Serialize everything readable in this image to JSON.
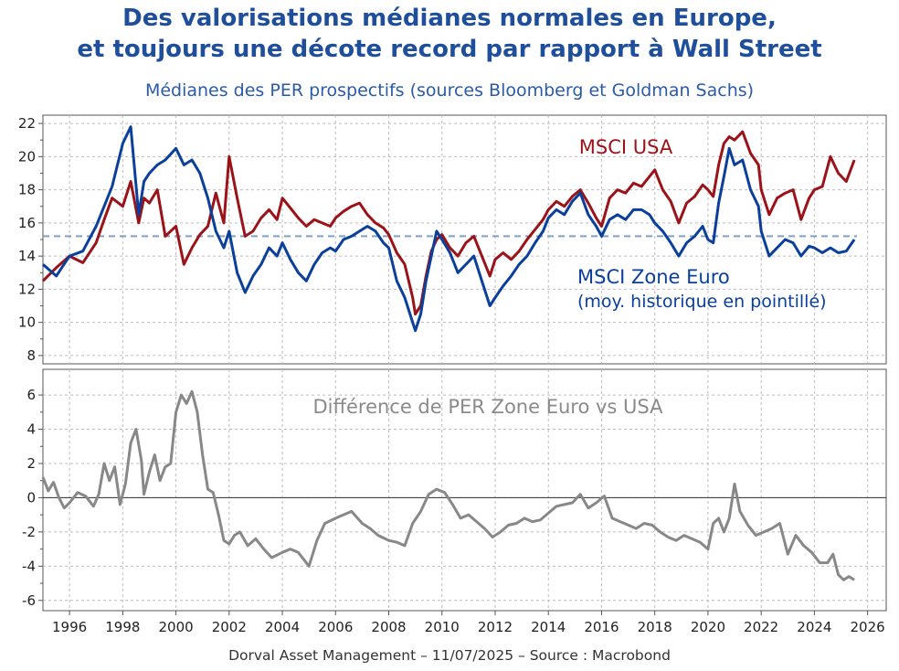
{
  "header": {
    "title_line1": "Des valorisations médianes normales en Europe,",
    "title_line2": "et toujours une décote record par rapport à Wall Street",
    "subtitle": "Médianes des PER prospectifs (sources Bloomberg et Goldman Sachs)"
  },
  "footer": {
    "text": "Dorval Asset Management – 11/07/2025 –   Source : Macrobond"
  },
  "colors": {
    "usa": "#9b1318",
    "euro": "#0b3f9c",
    "diff": "#888888",
    "avg": "#7da1c9",
    "grid": "#bcbcbc"
  },
  "chart_data": [
    {
      "type": "line",
      "xlim": [
        1995,
        2026.7
      ],
      "ylim": [
        7.5,
        22.5
      ],
      "yticks": [
        8,
        10,
        12,
        14,
        16,
        18,
        20,
        22
      ],
      "grid": true,
      "annotations": {
        "usa_label": "MSCI USA",
        "euro_label_line1": "MSCI Zone Euro",
        "euro_label_line2": "(moy. historique en pointillé)"
      },
      "euro_historical_average": 15.2,
      "series": [
        {
          "name": "MSCI USA",
          "x": [
            1995.0,
            1995.5,
            1996.0,
            1996.5,
            1997.0,
            1997.3,
            1997.6,
            1998.0,
            1998.3,
            1998.6,
            1998.8,
            1999.0,
            1999.3,
            1999.6,
            2000.0,
            2000.3,
            2000.6,
            2000.9,
            2001.2,
            2001.5,
            2001.8,
            2002.0,
            2002.3,
            2002.6,
            2002.9,
            2003.2,
            2003.5,
            2003.8,
            2004.0,
            2004.3,
            2004.6,
            2004.9,
            2005.2,
            2005.5,
            2005.8,
            2006.0,
            2006.3,
            2006.6,
            2006.9,
            2007.2,
            2007.5,
            2007.8,
            2008.0,
            2008.3,
            2008.6,
            2008.9,
            2009.0,
            2009.2,
            2009.4,
            2009.6,
            2009.8,
            2010.0,
            2010.3,
            2010.6,
            2010.9,
            2011.2,
            2011.5,
            2011.8,
            2012.0,
            2012.3,
            2012.6,
            2012.9,
            2013.2,
            2013.5,
            2013.8,
            2014.0,
            2014.3,
            2014.6,
            2014.9,
            2015.2,
            2015.5,
            2015.8,
            2016.0,
            2016.3,
            2016.6,
            2016.9,
            2017.2,
            2017.5,
            2017.8,
            2018.0,
            2018.3,
            2018.6,
            2018.9,
            2019.2,
            2019.5,
            2019.8,
            2020.0,
            2020.2,
            2020.4,
            2020.6,
            2020.8,
            2021.0,
            2021.3,
            2021.6,
            2021.9,
            2022.0,
            2022.3,
            2022.6,
            2022.9,
            2023.2,
            2023.5,
            2023.8,
            2024.0,
            2024.3,
            2024.6,
            2024.9,
            2025.2,
            2025.5
          ],
          "values": [
            12.5,
            13.3,
            14.0,
            13.6,
            14.8,
            16.2,
            17.5,
            17.0,
            18.5,
            16.0,
            17.5,
            17.2,
            18.0,
            15.2,
            15.8,
            13.5,
            14.5,
            15.3,
            15.8,
            17.8,
            16.0,
            20.0,
            17.5,
            15.2,
            15.5,
            16.3,
            16.8,
            16.2,
            17.5,
            16.9,
            16.3,
            15.8,
            16.2,
            16.0,
            15.8,
            16.3,
            16.7,
            17.0,
            17.2,
            16.5,
            16.0,
            15.7,
            15.3,
            14.2,
            13.5,
            11.5,
            10.5,
            11.0,
            12.8,
            14.3,
            15.0,
            15.3,
            14.5,
            14.0,
            14.8,
            15.2,
            14.0,
            12.8,
            13.8,
            14.2,
            13.8,
            14.3,
            15.0,
            15.6,
            16.2,
            16.8,
            17.3,
            17.0,
            17.6,
            18.0,
            17.2,
            16.3,
            15.8,
            17.5,
            18.0,
            17.8,
            18.4,
            18.2,
            18.8,
            19.2,
            18.0,
            17.3,
            16.0,
            17.2,
            17.6,
            18.3,
            18.0,
            17.6,
            19.5,
            20.8,
            21.2,
            21.0,
            21.5,
            20.2,
            19.5,
            18.0,
            16.5,
            17.5,
            17.8,
            18.0,
            16.2,
            17.5,
            18.0,
            18.2,
            20.0,
            19.0,
            18.5,
            19.8
          ]
        },
        {
          "name": "MSCI Zone Euro",
          "x": [
            1995.0,
            1995.5,
            1996.0,
            1996.5,
            1997.0,
            1997.3,
            1997.6,
            1998.0,
            1998.3,
            1998.6,
            1998.8,
            1999.0,
            1999.3,
            1999.6,
            2000.0,
            2000.3,
            2000.6,
            2000.9,
            2001.2,
            2001.5,
            2001.8,
            2002.0,
            2002.3,
            2002.6,
            2002.9,
            2003.2,
            2003.5,
            2003.8,
            2004.0,
            2004.3,
            2004.6,
            2004.9,
            2005.2,
            2005.5,
            2005.8,
            2006.0,
            2006.3,
            2006.6,
            2006.9,
            2007.2,
            2007.5,
            2007.8,
            2008.0,
            2008.3,
            2008.6,
            2008.9,
            2009.0,
            2009.2,
            2009.4,
            2009.6,
            2009.8,
            2010.0,
            2010.3,
            2010.6,
            2010.9,
            2011.2,
            2011.5,
            2011.8,
            2012.0,
            2012.3,
            2012.6,
            2012.9,
            2013.2,
            2013.5,
            2013.8,
            2014.0,
            2014.3,
            2014.6,
            2014.9,
            2015.2,
            2015.5,
            2015.8,
            2016.0,
            2016.3,
            2016.6,
            2016.9,
            2017.2,
            2017.5,
            2017.8,
            2018.0,
            2018.3,
            2018.6,
            2018.9,
            2019.2,
            2019.5,
            2019.8,
            2020.0,
            2020.2,
            2020.4,
            2020.6,
            2020.8,
            2021.0,
            2021.3,
            2021.6,
            2021.9,
            2022.0,
            2022.3,
            2022.6,
            2022.9,
            2023.2,
            2023.5,
            2023.8,
            2024.0,
            2024.3,
            2024.6,
            2024.9,
            2025.2,
            2025.5
          ],
          "values": [
            13.5,
            12.8,
            14.0,
            14.3,
            15.8,
            17.0,
            18.2,
            20.8,
            21.8,
            16.5,
            18.5,
            19.0,
            19.5,
            19.8,
            20.5,
            19.5,
            19.8,
            19.0,
            17.5,
            15.5,
            14.5,
            15.5,
            13.0,
            11.8,
            12.8,
            13.5,
            14.5,
            14.0,
            14.8,
            13.8,
            13.0,
            12.5,
            13.5,
            14.2,
            14.5,
            14.3,
            15.0,
            15.2,
            15.5,
            15.8,
            15.5,
            14.8,
            14.5,
            12.5,
            11.5,
            10.0,
            9.5,
            10.5,
            12.5,
            14.0,
            15.5,
            15.0,
            14.2,
            13.0,
            13.5,
            14.0,
            12.5,
            11.0,
            11.5,
            12.2,
            12.8,
            13.5,
            14.0,
            14.8,
            15.5,
            16.3,
            16.8,
            16.5,
            17.3,
            17.8,
            16.5,
            15.8,
            15.2,
            16.2,
            16.5,
            16.2,
            16.8,
            16.8,
            16.5,
            16.0,
            15.5,
            14.8,
            14.0,
            14.8,
            15.2,
            15.8,
            15.0,
            14.8,
            17.2,
            18.8,
            20.5,
            19.5,
            19.8,
            18.0,
            17.0,
            15.5,
            14.0,
            14.5,
            15.0,
            14.8,
            14.0,
            14.6,
            14.5,
            14.2,
            14.5,
            14.2,
            14.3,
            15.0
          ]
        }
      ]
    },
    {
      "type": "line",
      "xlim": [
        1995,
        2026.7
      ],
      "ylim": [
        -6.6,
        7.5
      ],
      "yticks": [
        -6,
        -4,
        -2,
        0,
        2,
        4,
        6
      ],
      "grid": true,
      "annotations": {
        "diff_label": "Différence de PER Zone Euro vs USA"
      },
      "xticks": [
        "1996",
        "1998",
        "2000",
        "2002",
        "2004",
        "2006",
        "2008",
        "2010",
        "2012",
        "2014",
        "2016",
        "2018",
        "2020",
        "2022",
        "2024",
        "2026"
      ],
      "series": [
        {
          "x": [
            1995.0,
            1995.2,
            1995.4,
            1995.6,
            1995.8,
            1996.0,
            1996.3,
            1996.6,
            1996.9,
            1997.1,
            1997.3,
            1997.5,
            1997.7,
            1997.9,
            1998.1,
            1998.3,
            1998.5,
            1998.7,
            1998.8,
            1999.0,
            1999.2,
            1999.4,
            1999.6,
            1999.8,
            2000.0,
            2000.2,
            2000.4,
            2000.6,
            2000.8,
            2001.0,
            2001.2,
            2001.4,
            2001.6,
            2001.8,
            2002.0,
            2002.2,
            2002.4,
            2002.7,
            2003.0,
            2003.3,
            2003.6,
            2004.0,
            2004.3,
            2004.6,
            2005.0,
            2005.3,
            2005.6,
            2006.0,
            2006.3,
            2006.6,
            2007.0,
            2007.3,
            2007.6,
            2008.0,
            2008.3,
            2008.6,
            2008.9,
            2009.2,
            2009.5,
            2009.8,
            2010.1,
            2010.4,
            2010.7,
            2011.0,
            2011.3,
            2011.6,
            2011.9,
            2012.2,
            2012.5,
            2012.8,
            2013.1,
            2013.4,
            2013.7,
            2014.0,
            2014.3,
            2014.6,
            2014.9,
            2015.2,
            2015.5,
            2015.8,
            2016.1,
            2016.4,
            2016.7,
            2017.0,
            2017.3,
            2017.6,
            2017.9,
            2018.2,
            2018.5,
            2018.8,
            2019.1,
            2019.4,
            2019.7,
            2020.0,
            2020.2,
            2020.4,
            2020.6,
            2020.8,
            2021.0,
            2021.2,
            2021.5,
            2021.8,
            2022.1,
            2022.4,
            2022.7,
            2023.0,
            2023.3,
            2023.6,
            2023.9,
            2024.2,
            2024.5,
            2024.7,
            2024.9,
            2025.1,
            2025.3,
            2025.5
          ],
          "values": [
            1.2,
            0.4,
            0.9,
            0.0,
            -0.6,
            -0.3,
            0.3,
            0.1,
            -0.5,
            0.2,
            2.0,
            1.0,
            1.8,
            -0.4,
            0.8,
            3.2,
            4.0,
            2.2,
            0.2,
            1.5,
            2.5,
            1.0,
            1.8,
            2.0,
            5.0,
            6.0,
            5.5,
            6.2,
            5.0,
            2.5,
            0.5,
            0.3,
            -1.0,
            -2.5,
            -2.7,
            -2.2,
            -2.0,
            -2.8,
            -2.4,
            -3.0,
            -3.5,
            -3.2,
            -3.0,
            -3.2,
            -4.0,
            -2.5,
            -1.5,
            -1.2,
            -1.0,
            -0.8,
            -1.5,
            -1.8,
            -2.2,
            -2.5,
            -2.6,
            -2.8,
            -1.5,
            -0.8,
            0.2,
            0.5,
            0.3,
            -0.4,
            -1.2,
            -1.0,
            -1.4,
            -1.8,
            -2.3,
            -2.0,
            -1.6,
            -1.5,
            -1.2,
            -1.4,
            -1.3,
            -0.9,
            -0.5,
            -0.4,
            -0.3,
            0.2,
            -0.6,
            -0.3,
            0.1,
            -1.2,
            -1.4,
            -1.6,
            -1.8,
            -1.5,
            -1.6,
            -2.0,
            -2.3,
            -2.5,
            -2.2,
            -2.4,
            -2.6,
            -3.0,
            -1.5,
            -1.2,
            -2.0,
            -1.2,
            0.8,
            -0.8,
            -1.6,
            -2.2,
            -2.0,
            -1.8,
            -1.5,
            -3.3,
            -2.2,
            -2.8,
            -3.2,
            -3.8,
            -3.8,
            -3.3,
            -4.5,
            -4.8,
            -4.6,
            -4.8
          ]
        }
      ]
    }
  ]
}
